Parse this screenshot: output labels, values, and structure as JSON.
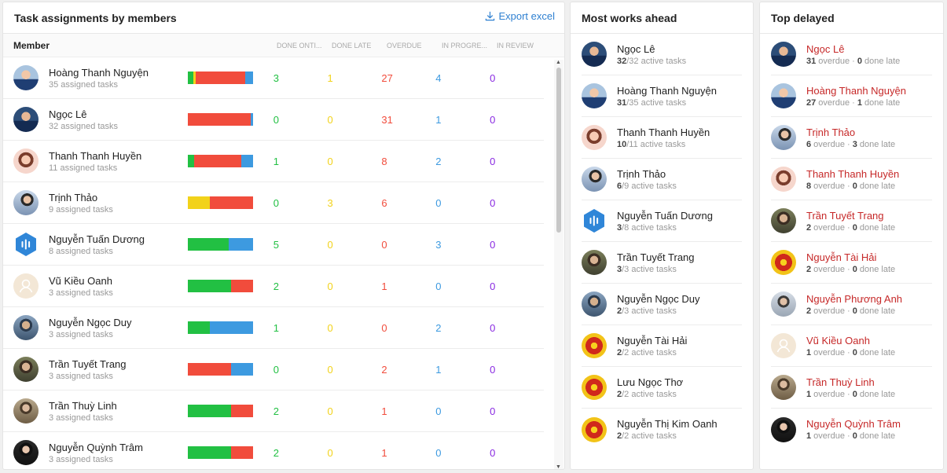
{
  "main": {
    "title": "Task assignments by members",
    "export_label": "Export excel",
    "columns": {
      "member": "Member",
      "done_ontime": "DONE ONTI...",
      "done_late": "DONE LATE",
      "overdue": "OVERDUE",
      "in_progress": "IN PROGRE...",
      "in_review": "IN REVIEW"
    },
    "rows": [
      {
        "name": "Hoàng Thanh Nguyện",
        "sub": "35 assigned tasks",
        "done_ontime": "3",
        "done_late": "1",
        "overdue": "27",
        "in_progress": "4",
        "in_review": "0"
      },
      {
        "name": "Ngọc Lê",
        "sub": "32 assigned tasks",
        "done_ontime": "0",
        "done_late": "0",
        "overdue": "31",
        "in_progress": "1",
        "in_review": "0"
      },
      {
        "name": "Thanh Thanh Huyền",
        "sub": "11 assigned tasks",
        "done_ontime": "1",
        "done_late": "0",
        "overdue": "8",
        "in_progress": "2",
        "in_review": "0"
      },
      {
        "name": "Trịnh Thảo",
        "sub": "9 assigned tasks",
        "done_ontime": "0",
        "done_late": "3",
        "overdue": "6",
        "in_progress": "0",
        "in_review": "0"
      },
      {
        "name": "Nguyễn Tuấn Dương",
        "sub": "8 assigned tasks",
        "done_ontime": "5",
        "done_late": "0",
        "overdue": "0",
        "in_progress": "3",
        "in_review": "0"
      },
      {
        "name": "Vũ Kiều Oanh",
        "sub": "3 assigned tasks",
        "done_ontime": "2",
        "done_late": "0",
        "overdue": "1",
        "in_progress": "0",
        "in_review": "0"
      },
      {
        "name": "Nguyễn Ngọc Duy",
        "sub": "3 assigned tasks",
        "done_ontime": "1",
        "done_late": "0",
        "overdue": "0",
        "in_progress": "2",
        "in_review": "0"
      },
      {
        "name": "Trần Tuyết Trang",
        "sub": "3 assigned tasks",
        "done_ontime": "0",
        "done_late": "0",
        "overdue": "2",
        "in_progress": "1",
        "in_review": "0"
      },
      {
        "name": "Trần Thuỳ Linh",
        "sub": "3 assigned tasks",
        "done_ontime": "2",
        "done_late": "0",
        "overdue": "1",
        "in_progress": "0",
        "in_review": "0"
      },
      {
        "name": "Nguyễn Quỳnh Trâm",
        "sub": "3 assigned tasks",
        "done_ontime": "2",
        "done_late": "0",
        "overdue": "1",
        "in_progress": "0",
        "in_review": "0"
      }
    ]
  },
  "ahead": {
    "title": "Most works ahead",
    "items": [
      {
        "name": "Ngọc Lê",
        "count": "32",
        "rest": "/32 active tasks"
      },
      {
        "name": "Hoàng Thanh Nguyện",
        "count": "31",
        "rest": "/35 active tasks"
      },
      {
        "name": "Thanh Thanh Huyền",
        "count": "10",
        "rest": "/11 active tasks"
      },
      {
        "name": "Trịnh Thảo",
        "count": "6",
        "rest": "/9 active tasks"
      },
      {
        "name": "Nguyễn Tuấn Dương",
        "count": "3",
        "rest": "/8 active tasks"
      },
      {
        "name": "Trần Tuyết Trang",
        "count": "3",
        "rest": "/3 active tasks"
      },
      {
        "name": "Nguyễn Ngọc Duy",
        "count": "2",
        "rest": "/3 active tasks"
      },
      {
        "name": "Nguyễn Tài Hải",
        "count": "2",
        "rest": "/2 active tasks"
      },
      {
        "name": "Lưu Ngọc Thơ",
        "count": "2",
        "rest": "/2 active tasks"
      },
      {
        "name": "Nguyễn Thị Kim Oanh",
        "count": "2",
        "rest": "/2 active tasks"
      }
    ]
  },
  "delayed": {
    "title": "Top delayed",
    "overdue_label": " overdue · ",
    "done_late_label": " done late",
    "items": [
      {
        "name": "Ngọc Lê",
        "overdue": "31",
        "done_late": "0"
      },
      {
        "name": "Hoàng Thanh Nguyện",
        "overdue": "27",
        "done_late": "1"
      },
      {
        "name": "Trịnh Thảo",
        "overdue": "6",
        "done_late": "3"
      },
      {
        "name": "Thanh Thanh Huyền",
        "overdue": "8",
        "done_late": "0"
      },
      {
        "name": "Trần Tuyết Trang",
        "overdue": "2",
        "done_late": "0"
      },
      {
        "name": "Nguyễn Tài Hải",
        "overdue": "2",
        "done_late": "0"
      },
      {
        "name": "Nguyễn Phương Anh",
        "overdue": "2",
        "done_late": "0"
      },
      {
        "name": "Vũ Kiều Oanh",
        "overdue": "1",
        "done_late": "0"
      },
      {
        "name": "Trần Thuỳ Linh",
        "overdue": "1",
        "done_late": "0"
      },
      {
        "name": "Nguyễn Quỳnh Trâm",
        "overdue": "1",
        "done_late": "0"
      }
    ]
  },
  "colors": {
    "done_ontime": "#22c043",
    "done_late": "#f2d21a",
    "overdue": "#f14c3c",
    "in_progress": "#3d9ae0",
    "in_review": "#8a2be2",
    "link": "#2f80d1",
    "delayed_name": "#c62828"
  }
}
